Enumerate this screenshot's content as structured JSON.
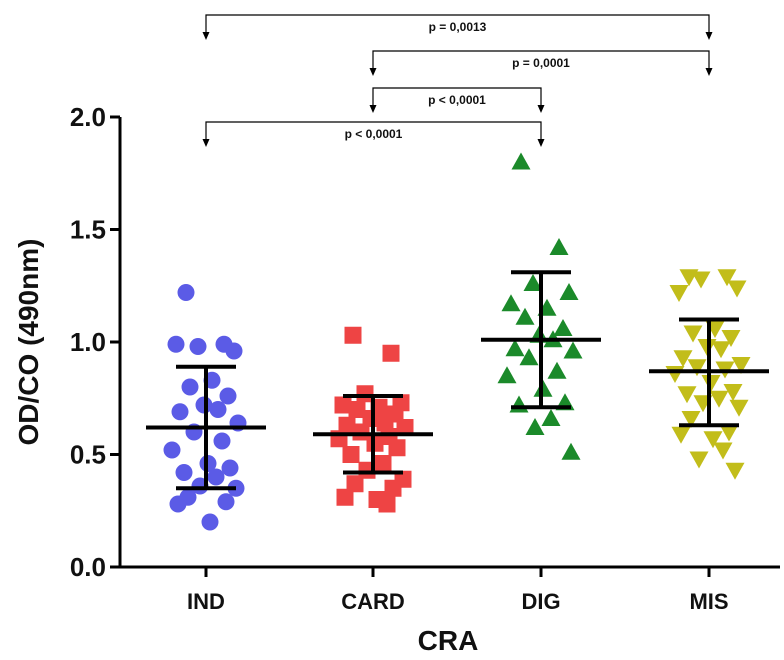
{
  "chart_data": {
    "type": "scatter",
    "title": "",
    "xlabel": "CRA",
    "ylabel": "OD/CO (490nm)",
    "categories": [
      "IND",
      "CARD",
      "DIG",
      "MIS"
    ],
    "ylim": [
      0.0,
      2.0
    ],
    "yticks": [
      "0.0",
      "0.5",
      "1.0",
      "1.5",
      "2.0"
    ],
    "grid": false,
    "series": [
      {
        "category": "IND",
        "marker": "circle",
        "color": "#5b5be6",
        "mean": 0.62,
        "sd_upper": 0.89,
        "sd_lower": 0.35,
        "values": [
          1.22,
          0.99,
          0.98,
          0.96,
          0.99,
          0.83,
          0.8,
          0.76,
          0.72,
          0.7,
          0.69,
          0.64,
          0.6,
          0.56,
          0.52,
          0.46,
          0.44,
          0.42,
          0.4,
          0.36,
          0.35,
          0.31,
          0.29,
          0.28,
          0.2
        ]
      },
      {
        "category": "CARD",
        "marker": "square",
        "color": "#ee4444",
        "mean": 0.59,
        "sd_upper": 0.76,
        "sd_lower": 0.42,
        "values": [
          1.03,
          0.95,
          0.77,
          0.73,
          0.72,
          0.71,
          0.7,
          0.68,
          0.66,
          0.64,
          0.63,
          0.62,
          0.6,
          0.58,
          0.57,
          0.55,
          0.53,
          0.5,
          0.46,
          0.43,
          0.39,
          0.37,
          0.35,
          0.31,
          0.3,
          0.28
        ]
      },
      {
        "category": "DIG",
        "marker": "triangle-up",
        "color": "#1b8a2a",
        "mean": 1.01,
        "sd_upper": 1.31,
        "sd_lower": 0.71,
        "values": [
          1.8,
          1.42,
          1.26,
          1.22,
          1.17,
          1.15,
          1.11,
          1.06,
          1.03,
          1.01,
          0.97,
          0.96,
          0.93,
          0.87,
          0.85,
          0.79,
          0.73,
          0.72,
          0.66,
          0.62,
          0.51
        ]
      },
      {
        "category": "MIS",
        "marker": "triangle-down",
        "color": "#c2bd1a",
        "mean": 0.87,
        "sd_upper": 1.1,
        "sd_lower": 0.63,
        "values": [
          1.29,
          1.29,
          1.28,
          1.24,
          1.22,
          1.06,
          1.04,
          1.02,
          0.98,
          0.97,
          0.93,
          0.9,
          0.89,
          0.88,
          0.86,
          0.82,
          0.78,
          0.77,
          0.75,
          0.73,
          0.71,
          0.66,
          0.6,
          0.59,
          0.57,
          0.52,
          0.48,
          0.43
        ]
      }
    ],
    "comparisons": [
      {
        "from": "IND",
        "to": "MIS",
        "label": "p = 0,0013"
      },
      {
        "from": "CARD",
        "to": "MIS",
        "label": "p = 0,0001"
      },
      {
        "from": "CARD",
        "to": "DIG",
        "label": "p < 0,0001"
      },
      {
        "from": "IND",
        "to": "DIG",
        "label": "p < 0,0001"
      }
    ]
  }
}
